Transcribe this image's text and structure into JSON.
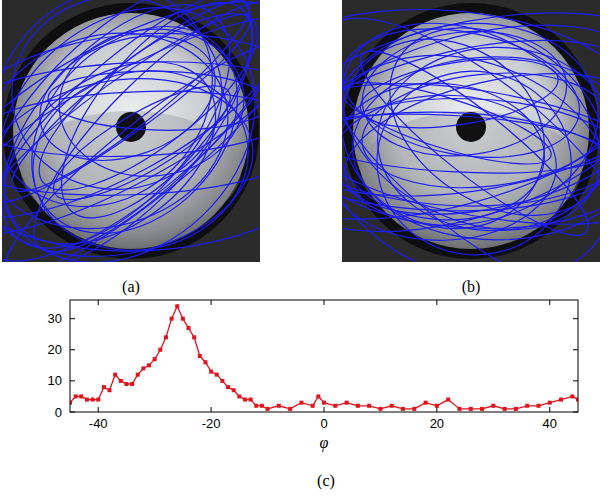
{
  "images": [
    {
      "label": "(a)"
    },
    {
      "label": "(b)"
    }
  ],
  "chart_data": {
    "type": "line",
    "caption": "(c)",
    "x_label": "φ",
    "xlim": [
      -45,
      45
    ],
    "xticks": [
      -40,
      -20,
      0,
      20,
      40
    ],
    "ylim": [
      0,
      36
    ],
    "yticks": [
      0,
      10,
      20,
      30
    ],
    "color": "#e0141e",
    "marker": "square",
    "grid": false,
    "x": [
      -45,
      -44,
      -43,
      -42,
      -41,
      -40,
      -39,
      -38,
      -37,
      -36,
      -35,
      -34,
      -33,
      -32,
      -31,
      -30,
      -29,
      -28,
      -27,
      -26,
      -25,
      -24,
      -23,
      -22,
      -21,
      -20,
      -19,
      -18,
      -17,
      -16,
      -15,
      -14,
      -13,
      -12,
      -11,
      -10,
      -8,
      -6,
      -4,
      -2,
      -1,
      0,
      2,
      4,
      6,
      8,
      10,
      12,
      14,
      16,
      18,
      20,
      22,
      24,
      26,
      28,
      30,
      32,
      34,
      36,
      38,
      40,
      42,
      44,
      45
    ],
    "values": [
      3,
      5,
      5,
      4,
      4,
      4,
      8,
      7,
      12,
      10,
      9,
      9,
      12,
      14,
      15,
      17,
      20,
      24,
      30,
      34,
      30,
      27,
      24,
      18,
      16,
      13,
      12,
      10,
      8,
      7,
      5,
      4,
      4,
      2,
      2,
      1,
      2,
      1,
      3,
      2,
      5,
      3,
      2,
      3,
      2,
      2,
      1,
      2,
      1,
      1,
      3,
      2,
      4,
      1,
      1,
      1,
      2,
      1,
      1,
      2,
      2,
      3,
      4,
      5,
      4
    ]
  }
}
